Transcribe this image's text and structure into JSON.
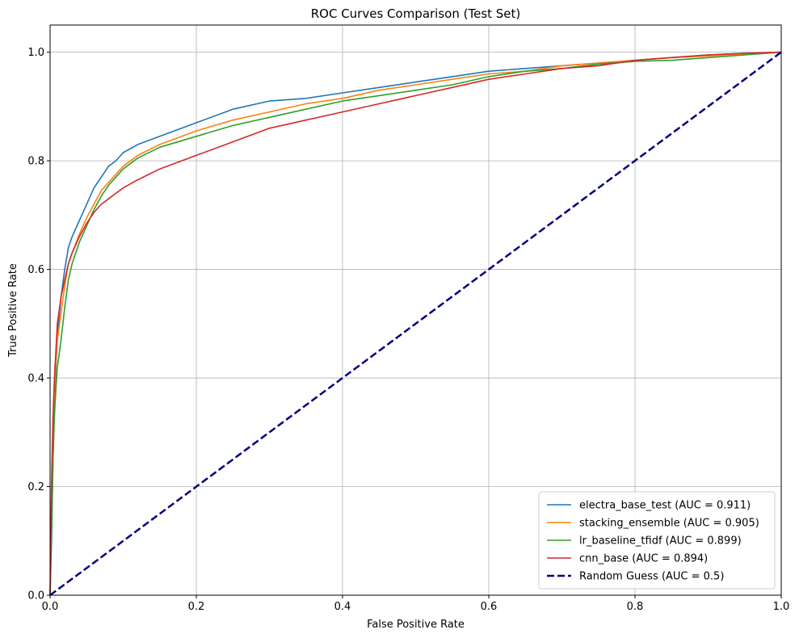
{
  "chart_data": {
    "type": "line",
    "title": "ROC Curves Comparison (Test Set)",
    "xlabel": "False Positive Rate",
    "ylabel": "True Positive Rate",
    "xlim": [
      0.0,
      1.0
    ],
    "ylim": [
      0.0,
      1.05
    ],
    "xticks": [
      "0.0",
      "0.2",
      "0.4",
      "0.6",
      "0.8",
      "1.0"
    ],
    "yticks": [
      "0.0",
      "0.2",
      "0.4",
      "0.6",
      "0.8",
      "1.0"
    ],
    "grid": true,
    "legend_position": "bottom-right",
    "series": [
      {
        "name": "electra_base_test (AUC = 0.911)",
        "color": "#1f77b4",
        "style": "solid",
        "x": [
          0,
          0.002,
          0.004,
          0.006,
          0.008,
          0.01,
          0.015,
          0.02,
          0.025,
          0.03,
          0.04,
          0.05,
          0.06,
          0.07,
          0.08,
          0.09,
          0.1,
          0.12,
          0.15,
          0.2,
          0.25,
          0.3,
          0.35,
          0.4,
          0.45,
          0.5,
          0.55,
          0.6,
          0.65,
          0.7,
          0.75,
          0.8,
          0.85,
          0.9,
          0.95,
          1.0
        ],
        "y": [
          0,
          0.1,
          0.25,
          0.35,
          0.42,
          0.48,
          0.55,
          0.6,
          0.64,
          0.66,
          0.69,
          0.72,
          0.75,
          0.77,
          0.79,
          0.8,
          0.815,
          0.83,
          0.845,
          0.87,
          0.895,
          0.91,
          0.915,
          0.925,
          0.935,
          0.945,
          0.955,
          0.965,
          0.97,
          0.975,
          0.98,
          0.985,
          0.99,
          0.995,
          0.998,
          1.0
        ]
      },
      {
        "name": "stacking_ensemble (AUC = 0.905)",
        "color": "#ff7f0e",
        "style": "solid",
        "x": [
          0,
          0.002,
          0.004,
          0.006,
          0.008,
          0.01,
          0.015,
          0.02,
          0.025,
          0.03,
          0.04,
          0.05,
          0.06,
          0.07,
          0.08,
          0.09,
          0.1,
          0.12,
          0.15,
          0.2,
          0.25,
          0.3,
          0.35,
          0.4,
          0.45,
          0.5,
          0.55,
          0.6,
          0.65,
          0.7,
          0.75,
          0.8,
          0.85,
          0.9,
          0.95,
          1.0
        ],
        "y": [
          0,
          0.15,
          0.3,
          0.38,
          0.43,
          0.47,
          0.52,
          0.57,
          0.61,
          0.63,
          0.665,
          0.695,
          0.72,
          0.745,
          0.76,
          0.775,
          0.79,
          0.81,
          0.83,
          0.855,
          0.875,
          0.89,
          0.905,
          0.915,
          0.93,
          0.94,
          0.95,
          0.96,
          0.965,
          0.975,
          0.98,
          0.985,
          0.99,
          0.993,
          0.997,
          1.0
        ]
      },
      {
        "name": "lr_baseline_tfidf (AUC = 0.899)",
        "color": "#2ca02c",
        "style": "solid",
        "x": [
          0,
          0.002,
          0.004,
          0.006,
          0.008,
          0.01,
          0.015,
          0.02,
          0.025,
          0.03,
          0.04,
          0.05,
          0.06,
          0.07,
          0.08,
          0.09,
          0.1,
          0.12,
          0.15,
          0.2,
          0.25,
          0.3,
          0.35,
          0.4,
          0.45,
          0.5,
          0.55,
          0.6,
          0.65,
          0.7,
          0.75,
          0.8,
          0.85,
          0.9,
          0.95,
          1.0
        ],
        "y": [
          0,
          0.12,
          0.25,
          0.33,
          0.38,
          0.42,
          0.47,
          0.53,
          0.58,
          0.61,
          0.65,
          0.68,
          0.71,
          0.735,
          0.755,
          0.77,
          0.785,
          0.805,
          0.825,
          0.845,
          0.865,
          0.88,
          0.895,
          0.91,
          0.92,
          0.93,
          0.94,
          0.955,
          0.965,
          0.97,
          0.978,
          0.983,
          0.985,
          0.99,
          0.995,
          1.0
        ]
      },
      {
        "name": "cnn_base (AUC = 0.894)",
        "color": "#d62728",
        "style": "solid",
        "x": [
          0,
          0.002,
          0.004,
          0.006,
          0.008,
          0.01,
          0.015,
          0.02,
          0.025,
          0.03,
          0.04,
          0.05,
          0.06,
          0.07,
          0.08,
          0.09,
          0.1,
          0.12,
          0.15,
          0.2,
          0.25,
          0.3,
          0.35,
          0.4,
          0.45,
          0.5,
          0.55,
          0.6,
          0.65,
          0.7,
          0.75,
          0.8,
          0.85,
          0.9,
          0.95,
          1.0
        ],
        "y": [
          0,
          0.2,
          0.33,
          0.4,
          0.45,
          0.5,
          0.55,
          0.58,
          0.61,
          0.63,
          0.66,
          0.685,
          0.705,
          0.72,
          0.73,
          0.74,
          0.75,
          0.765,
          0.785,
          0.81,
          0.835,
          0.86,
          0.875,
          0.89,
          0.905,
          0.92,
          0.935,
          0.95,
          0.96,
          0.97,
          0.975,
          0.985,
          0.99,
          0.995,
          0.998,
          1.0
        ]
      },
      {
        "name": "Random Guess (AUC = 0.5)",
        "color": "#000080",
        "style": "dashed",
        "x": [
          0,
          1
        ],
        "y": [
          0,
          1
        ]
      }
    ]
  }
}
